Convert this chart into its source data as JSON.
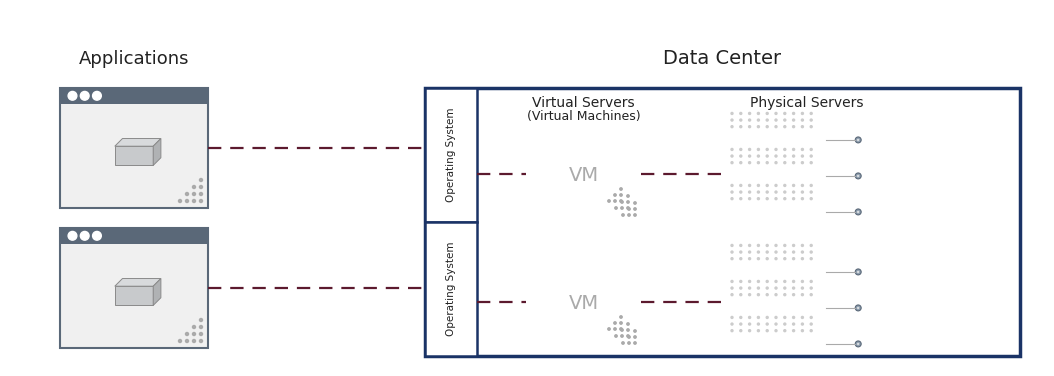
{
  "bg_color": "#ffffff",
  "title_applications": "Applications",
  "title_datacenter": "Data Center",
  "title_virtual_servers": "Virtual Servers",
  "title_virtual_machines": "(Virtual Machines)",
  "title_physical_servers": "Physical Servers",
  "title_os": "Operating System",
  "dc_box_color": "#1a3366",
  "os_box_color": "#1a3366",
  "os_box_fill": "#ffffff",
  "dashed_line_color": "#5c1a2e",
  "app_border_color": "#5a6878",
  "app_titlebar_color": "#5a6878",
  "app_fill": "#f0f0f0",
  "vm_border_color": "#5a6878",
  "vm_fill": "#f0f0f0",
  "vm_header_color": "#8899aa",
  "vm_text_color": "#888888",
  "server_body_color": "#e8eaec",
  "server_dark_color": "#4a5a6a",
  "server_border_color": "#5a6878",
  "dot_color": "#aaaaaa"
}
